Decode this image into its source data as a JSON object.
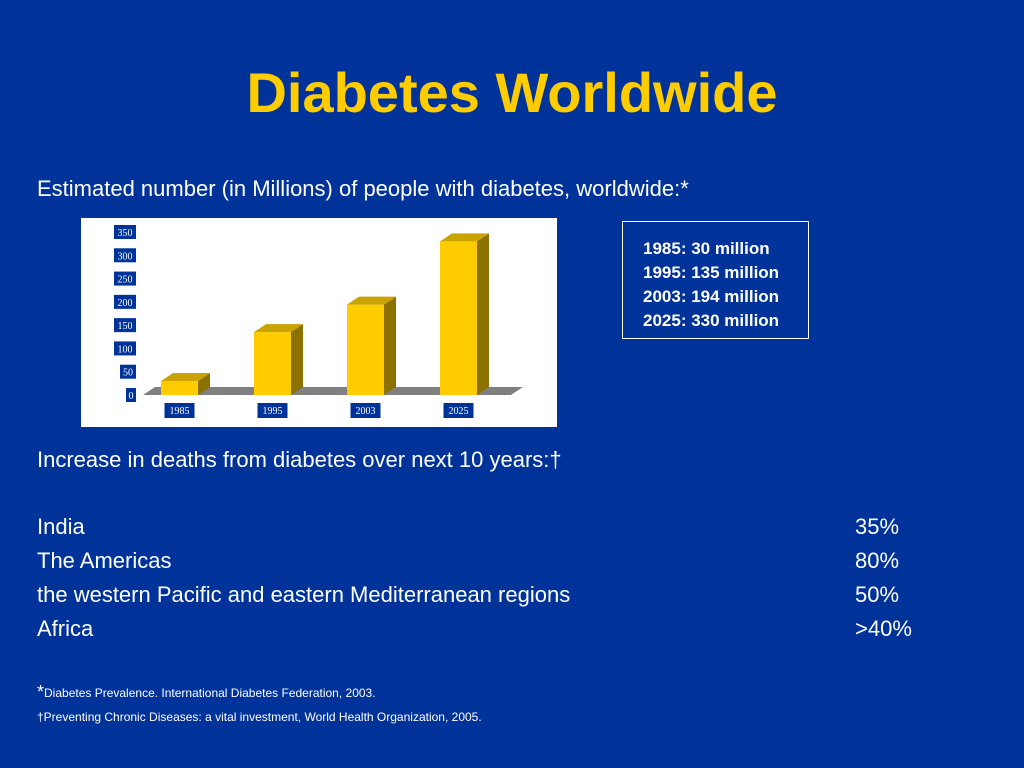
{
  "slide": {
    "title": "Diabetes Worldwide",
    "subtitle": "Estimated number (in Millions) of people with diabetes, worldwide:*",
    "estimates": [
      "1985:  30 million",
      "1995:  135 million",
      "2003:  194 million",
      "2025:  330 million"
    ],
    "deaths_title": "Increase in deaths from diabetes over next 10 years:†",
    "regions": [
      {
        "name": "India",
        "value": "35%"
      },
      {
        "name": "The Americas",
        "value": "80%"
      },
      {
        "name": "the western Pacific and eastern Mediterranean regions",
        "value": "50%"
      },
      {
        "name": "Africa",
        "value": ">40%"
      }
    ],
    "footnotes": [
      {
        "marker": "*",
        "text": "Diabetes Prevalence.  International Diabetes Federation, 2003."
      },
      {
        "marker": "",
        "text": "†Preventing Chronic Diseases:  a vital investment, World Health Organization, 2005."
      }
    ]
  },
  "colors": {
    "background": "#003399",
    "title": "#ffcc00",
    "bar_face": "#ffcc00",
    "bar_side": "#8c7000",
    "bar_top": "#c9a400",
    "floor": "#808080",
    "label_box": "#003399"
  },
  "chart_data": {
    "type": "bar",
    "categories": [
      "1985",
      "1995",
      "2003",
      "2025"
    ],
    "values": [
      30,
      135,
      194,
      330
    ],
    "title": "",
    "xlabel": "",
    "ylabel": "",
    "ylim": [
      0,
      350
    ],
    "yticks": [
      "0",
      "50",
      "100",
      "150",
      "200",
      "250",
      "300",
      "350"
    ],
    "grid": false,
    "style": "3d-bar"
  }
}
